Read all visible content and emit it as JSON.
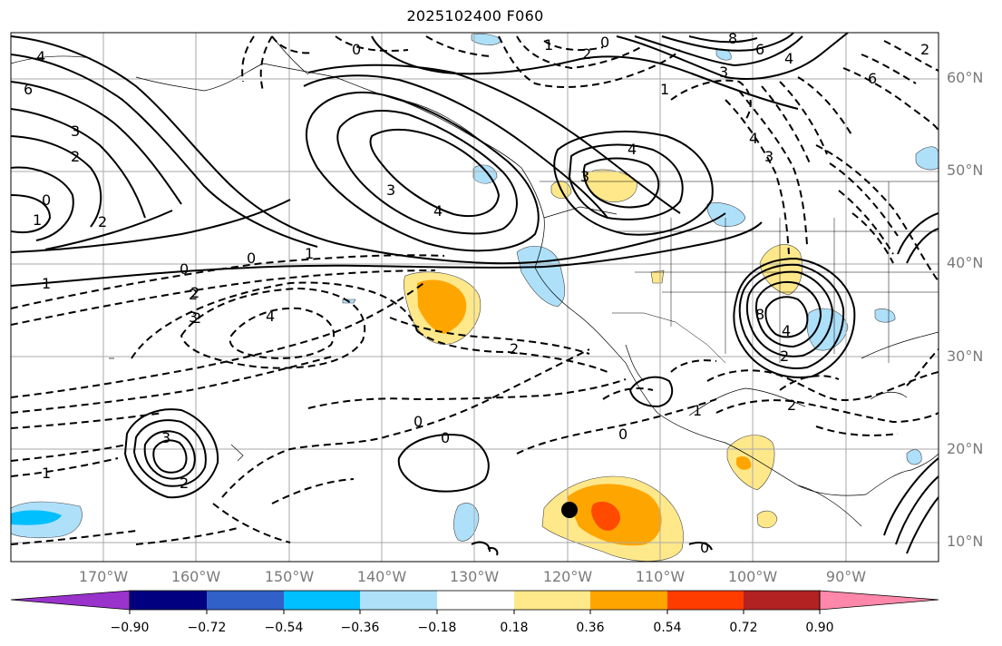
{
  "title": "2025102400 F060",
  "map": {
    "lat_labels": [
      "60°N",
      "50°N",
      "40°N",
      "30°N",
      "20°N",
      "10°N"
    ],
    "lon_labels": [
      "170°W",
      "160°W",
      "150°W",
      "140°W",
      "130°W",
      "120°W",
      "110°W",
      "100°W",
      "90°W"
    ],
    "contour_labels": {
      "positive": [
        "4",
        "6",
        "3",
        "2",
        "0",
        "1",
        "1",
        "2",
        "3",
        "4",
        "8",
        "6",
        "4",
        "3",
        "4",
        "3",
        "2",
        "8",
        "4",
        "3",
        "2",
        "1",
        "0",
        "0"
      ],
      "negative": [
        "0",
        "1",
        "2",
        "0",
        "1",
        "6",
        "4",
        "3",
        "0",
        "1",
        "2",
        "2",
        "3",
        "4",
        "2",
        "2",
        "0",
        "0",
        "1",
        "2",
        "0",
        "2"
      ]
    }
  },
  "colorbar": {
    "colors": [
      "#9933cc",
      "#000080",
      "#3060c8",
      "#00bfff",
      "#aee0fa",
      "#ffffff",
      "#ffe88a",
      "#ffa500",
      "#ff3c00",
      "#b22222",
      "#ff88aa"
    ],
    "tick_labels": [
      "−0.90",
      "−0.72",
      "−0.54",
      "−0.36",
      "−0.18",
      "0.18",
      "0.36",
      "0.54",
      "0.72",
      "0.90"
    ]
  }
}
